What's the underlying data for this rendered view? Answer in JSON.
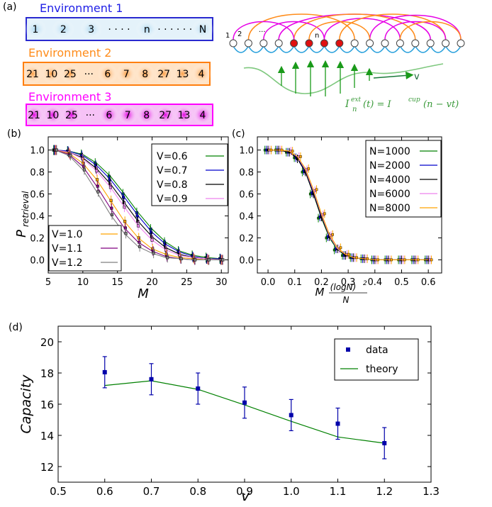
{
  "panel_labels": {
    "a": "(a)",
    "b": "(b)",
    "c": "(c)",
    "d": "(d)"
  },
  "schematic": {
    "env1": {
      "title": "Environment 1",
      "color": "#1e1ee6",
      "fill": "#a9d6ef",
      "items": [
        "1",
        "2",
        "3",
        "· · · ·",
        "n",
        "· · · · · ·",
        "N"
      ]
    },
    "env2": {
      "title": "Environment 2",
      "color": "#ff8c1a",
      "fill": "#ff9f45",
      "items": [
        "21",
        "10",
        "25",
        "···",
        "6",
        "7",
        "8",
        "27",
        "13",
        "4"
      ]
    },
    "env3": {
      "title": "Environment 3",
      "color": "#ff00ff",
      "fill": "#e000e0",
      "items": [
        "21",
        "10",
        "25",
        "···",
        "6",
        "7",
        "8",
        "27",
        "13",
        "4"
      ]
    },
    "chain_labels": {
      "one": "1",
      "two": "2",
      "dots": "···",
      "n": "n"
    },
    "velocity_label": "v",
    "equation_parts": {
      "I": "I",
      "sub_n": "n",
      "sup_ext": "ext",
      "mid": "(t) = I",
      "sup_cup": "cup",
      "tail": "(n − vt)"
    },
    "colors": {
      "node_active": "#e01010",
      "springs": "#28a0dc",
      "arrows": "#1a9a1a",
      "arc_orange": "#ff8c1a",
      "arc_magenta": "#e600e6"
    }
  },
  "chart_data": [
    {
      "panel": "b",
      "type": "line",
      "xlabel": "M",
      "ylabel": "P",
      "ylabel_sub": "retrieval",
      "xlim": [
        5,
        31
      ],
      "ylim": [
        -0.12,
        1.12
      ],
      "xticks": [
        "5",
        "10",
        "15",
        "20",
        "25",
        "30"
      ],
      "yticks": [
        "0.0",
        "0.2",
        "0.4",
        "0.6",
        "0.8",
        "1.0"
      ],
      "x": [
        6,
        8,
        10,
        12,
        14,
        16,
        18,
        20,
        22,
        24,
        26,
        28,
        30
      ],
      "legend_top": [
        "V=0.6",
        "V=0.7",
        "V=0.8",
        "V=0.9"
      ],
      "legend_bottom": [
        "V=1.0",
        "V=1.1",
        "V=1.2"
      ],
      "series": [
        {
          "name": "V=0.6",
          "color": "#008000",
          "values": [
            1.0,
            0.99,
            0.96,
            0.88,
            0.76,
            0.6,
            0.43,
            0.28,
            0.16,
            0.08,
            0.04,
            0.02,
            0.01
          ]
        },
        {
          "name": "V=0.7",
          "color": "#0000cc",
          "values": [
            1.0,
            0.99,
            0.95,
            0.86,
            0.73,
            0.57,
            0.4,
            0.25,
            0.14,
            0.07,
            0.03,
            0.01,
            0.01
          ]
        },
        {
          "name": "V=0.8",
          "color": "#000000",
          "values": [
            1.0,
            0.98,
            0.93,
            0.83,
            0.69,
            0.52,
            0.35,
            0.21,
            0.11,
            0.05,
            0.02,
            0.01,
            0.0
          ]
        },
        {
          "name": "V=0.9",
          "color": "#ee82ee",
          "values": [
            1.0,
            0.98,
            0.92,
            0.81,
            0.66,
            0.48,
            0.31,
            0.18,
            0.09,
            0.04,
            0.02,
            0.01,
            0.0
          ]
        },
        {
          "name": "V=1.0",
          "color": "#ffa500",
          "values": [
            1.0,
            0.97,
            0.88,
            0.73,
            0.54,
            0.35,
            0.2,
            0.1,
            0.05,
            0.02,
            0.01,
            0.0,
            0.0
          ]
        },
        {
          "name": "V=1.1",
          "color": "#800080",
          "values": [
            1.0,
            0.96,
            0.85,
            0.67,
            0.47,
            0.29,
            0.16,
            0.08,
            0.03,
            0.01,
            0.0,
            0.0,
            0.0
          ]
        },
        {
          "name": "V=1.2",
          "color": "#808080",
          "values": [
            1.0,
            0.95,
            0.82,
            0.62,
            0.41,
            0.24,
            0.12,
            0.06,
            0.02,
            0.01,
            0.0,
            0.0,
            0.0
          ]
        }
      ]
    },
    {
      "panel": "c",
      "type": "line",
      "xlabel_main": "M",
      "xlabel_num": "(logN)",
      "xlabel_sup": "2",
      "xlabel_den": "N",
      "xlim": [
        -0.04,
        0.65
      ],
      "ylim": [
        -0.12,
        1.12
      ],
      "xticks": [
        "0.0",
        "0.1",
        "0.2",
        "0.3",
        "0.4",
        "0.5",
        "0.6"
      ],
      "yticks": [
        "0.0",
        "0.2",
        "0.4",
        "0.6",
        "0.8",
        "1.0"
      ],
      "x": [
        0.0,
        0.04,
        0.08,
        0.11,
        0.14,
        0.17,
        0.2,
        0.23,
        0.26,
        0.29,
        0.32,
        0.36,
        0.4,
        0.45,
        0.5,
        0.55,
        0.6
      ],
      "legend": [
        "N=1000",
        "N=2000",
        "N=4000",
        "N=6000",
        "N=8000"
      ],
      "series": [
        {
          "name": "N=1000",
          "color": "#008000",
          "values": [
            1.0,
            1.0,
            0.98,
            0.93,
            0.8,
            0.6,
            0.38,
            0.2,
            0.09,
            0.04,
            0.02,
            0.01,
            0.0,
            0.0,
            0.0,
            0.0,
            0.0
          ]
        },
        {
          "name": "N=2000",
          "color": "#0000cc",
          "values": [
            1.0,
            1.0,
            0.98,
            0.93,
            0.81,
            0.61,
            0.39,
            0.21,
            0.1,
            0.04,
            0.02,
            0.01,
            0.0,
            0.0,
            0.0,
            0.0,
            0.0
          ]
        },
        {
          "name": "N=4000",
          "color": "#000000",
          "values": [
            1.0,
            1.0,
            0.98,
            0.92,
            0.8,
            0.6,
            0.39,
            0.21,
            0.1,
            0.04,
            0.02,
            0.01,
            0.0,
            0.0,
            0.0,
            0.0,
            0.0
          ]
        },
        {
          "name": "N=6000",
          "color": "#ee82ee",
          "values": [
            1.0,
            1.0,
            0.99,
            0.94,
            0.82,
            0.63,
            0.41,
            0.22,
            0.1,
            0.05,
            0.02,
            0.01,
            0.0,
            0.0,
            0.0,
            0.0,
            0.0
          ]
        },
        {
          "name": "N=8000",
          "color": "#ffa500",
          "values": [
            1.0,
            1.0,
            0.99,
            0.94,
            0.83,
            0.64,
            0.42,
            0.23,
            0.11,
            0.05,
            0.02,
            0.01,
            0.0,
            0.0,
            0.0,
            0.0,
            0.0
          ]
        }
      ]
    },
    {
      "panel": "d",
      "type": "line",
      "xlabel": "v",
      "ylabel": "Capacity",
      "xlim": [
        0.5,
        1.3
      ],
      "ylim": [
        11,
        21
      ],
      "xticks": [
        "0.5",
        "0.6",
        "0.7",
        "0.8",
        "0.9",
        "1.0",
        "1.1",
        "1.2",
        "1.3"
      ],
      "yticks": [
        "12",
        "14",
        "16",
        "18",
        "20"
      ],
      "x": [
        0.6,
        0.7,
        0.8,
        0.9,
        1.0,
        1.1,
        1.2
      ],
      "legend": [
        "data",
        "theory"
      ],
      "series": [
        {
          "name": "data",
          "color": "#0000aa",
          "values": [
            18.05,
            17.6,
            17.0,
            16.1,
            15.3,
            14.75,
            13.5
          ],
          "err": [
            1.0,
            1.0,
            1.0,
            1.0,
            1.0,
            1.0,
            1.0
          ]
        },
        {
          "name": "theory",
          "color": "#008000",
          "values": [
            17.2,
            17.5,
            16.95,
            15.95,
            14.9,
            13.9,
            13.5
          ]
        }
      ]
    }
  ]
}
